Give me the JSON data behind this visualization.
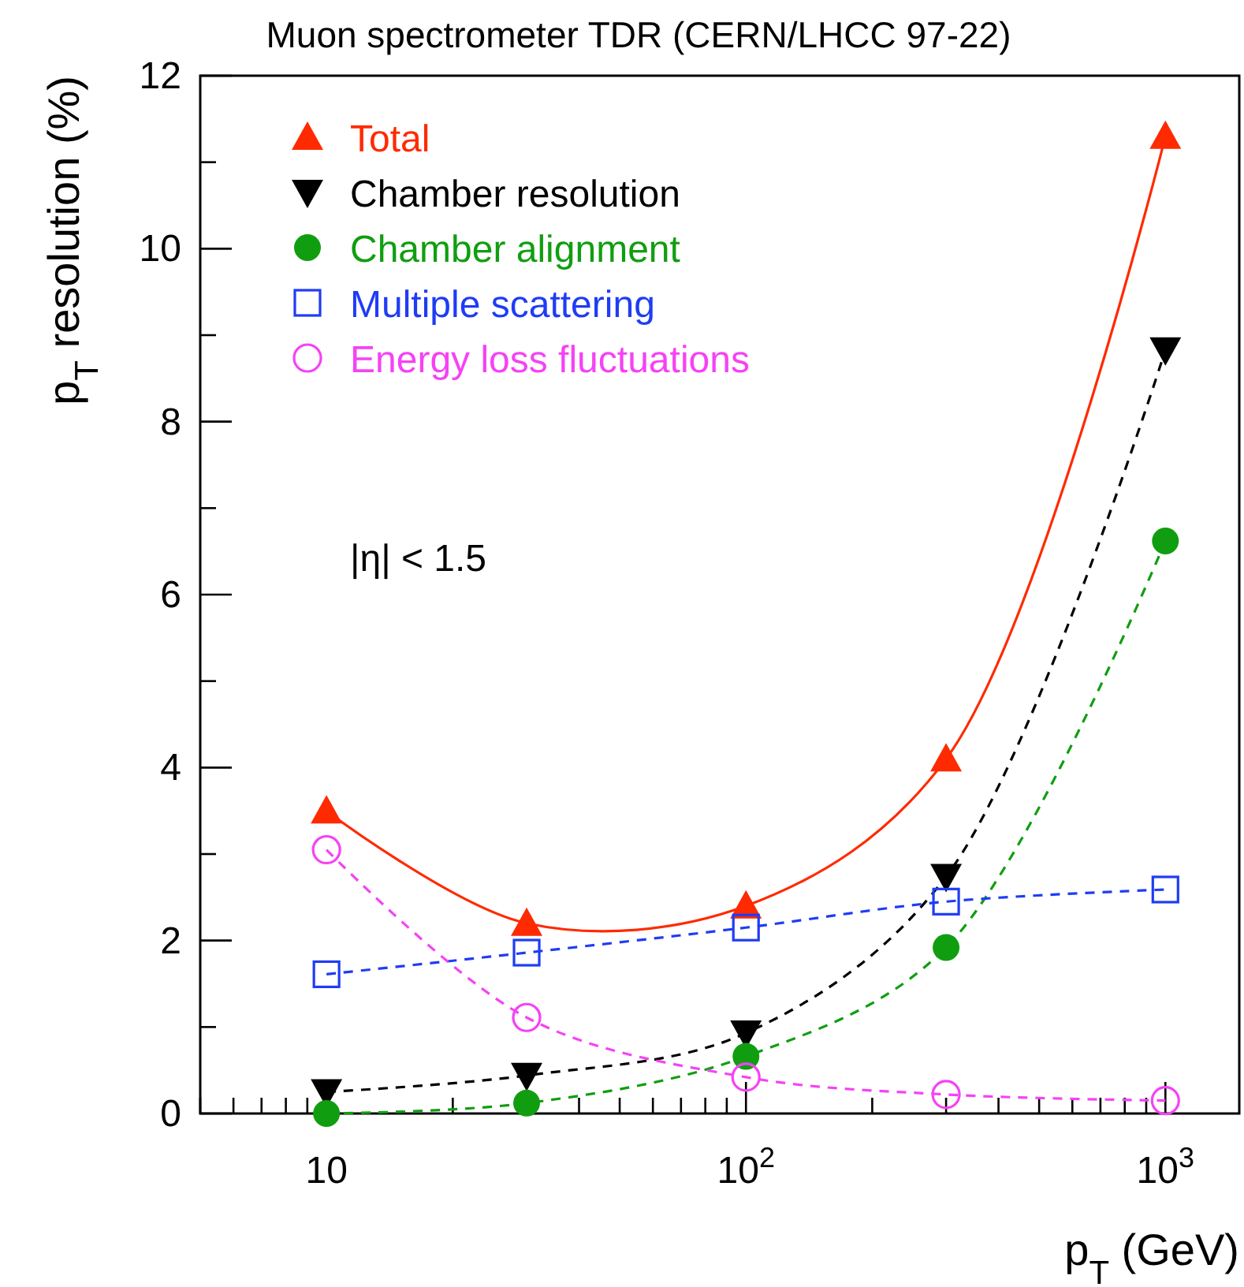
{
  "chart_data": {
    "type": "line",
    "title": "Muon spectrometer TDR (CERN/LHCC 97-22)",
    "xlabel": "p$_{T}$ (GeV)",
    "ylabel": "p$_{T}$ resolution (%)",
    "x": [
      10,
      30,
      100,
      300,
      1000
    ],
    "log": "x",
    "xlim": [
      5,
      1500
    ],
    "xticks": [
      {
        "value": 5,
        "label": null
      },
      {
        "value": 6,
        "label": null
      },
      {
        "value": 7,
        "label": null
      },
      {
        "value": 8,
        "label": null
      },
      {
        "value": 9,
        "label": null
      },
      {
        "value": 10,
        "label": "10"
      },
      {
        "value": 20,
        "label": null
      },
      {
        "value": 30,
        "label": null
      },
      {
        "value": 40,
        "label": null
      },
      {
        "value": 50,
        "label": null
      },
      {
        "value": 60,
        "label": null
      },
      {
        "value": 70,
        "label": null
      },
      {
        "value": 80,
        "label": null
      },
      {
        "value": 90,
        "label": null
      },
      {
        "value": 100,
        "label": "10$^{2}$"
      },
      {
        "value": 200,
        "label": null
      },
      {
        "value": 300,
        "label": null
      },
      {
        "value": 400,
        "label": null
      },
      {
        "value": 500,
        "label": null
      },
      {
        "value": 600,
        "label": null
      },
      {
        "value": 700,
        "label": null
      },
      {
        "value": 800,
        "label": null
      },
      {
        "value": 900,
        "label": null
      },
      {
        "value": 1000,
        "label": "10$^{3}$"
      }
    ],
    "ylim": [
      0,
      12
    ],
    "yticks": [
      0,
      {
        "value": 1,
        "label": null
      },
      2,
      {
        "value": 3,
        "label": null
      },
      4,
      {
        "value": 5,
        "label": null
      },
      6,
      {
        "value": 7,
        "label": null
      },
      8,
      {
        "value": 9,
        "label": null
      },
      10,
      {
        "value": 11,
        "label": null
      },
      12
    ],
    "grid": false,
    "legend": "top left",
    "annotations": [
      "|η| < 1.5"
    ],
    "series": [
      {
        "name": "Total",
        "color": "#ff2a00",
        "values": [
          3.5,
          2.2,
          2.4,
          4.1,
          11.3
        ],
        "marker": "triangle",
        "line_style": "solid"
      },
      {
        "name": "Chamber resolution",
        "color": "#000000",
        "values": [
          0.25,
          0.44,
          0.93,
          2.74,
          8.83
        ],
        "marker": "triangle-down",
        "line_style": "dashed"
      },
      {
        "name": "Chamber alignment",
        "color": "#109e10",
        "values": [
          0.0,
          0.12,
          0.66,
          1.92,
          6.62
        ],
        "marker": "circle",
        "line_style": "dashed"
      },
      {
        "name": "Multiple scattering",
        "color": "#1f3cf5",
        "values": [
          1.61,
          1.86,
          2.15,
          2.45,
          2.59
        ],
        "marker": "square-open",
        "line_style": "dashed"
      },
      {
        "name": "Energy loss fluctuations",
        "color": "#f542f5",
        "values": [
          3.05,
          1.11,
          0.42,
          0.22,
          0.15
        ],
        "marker": "circle-open",
        "line_style": "dashed"
      }
    ]
  }
}
